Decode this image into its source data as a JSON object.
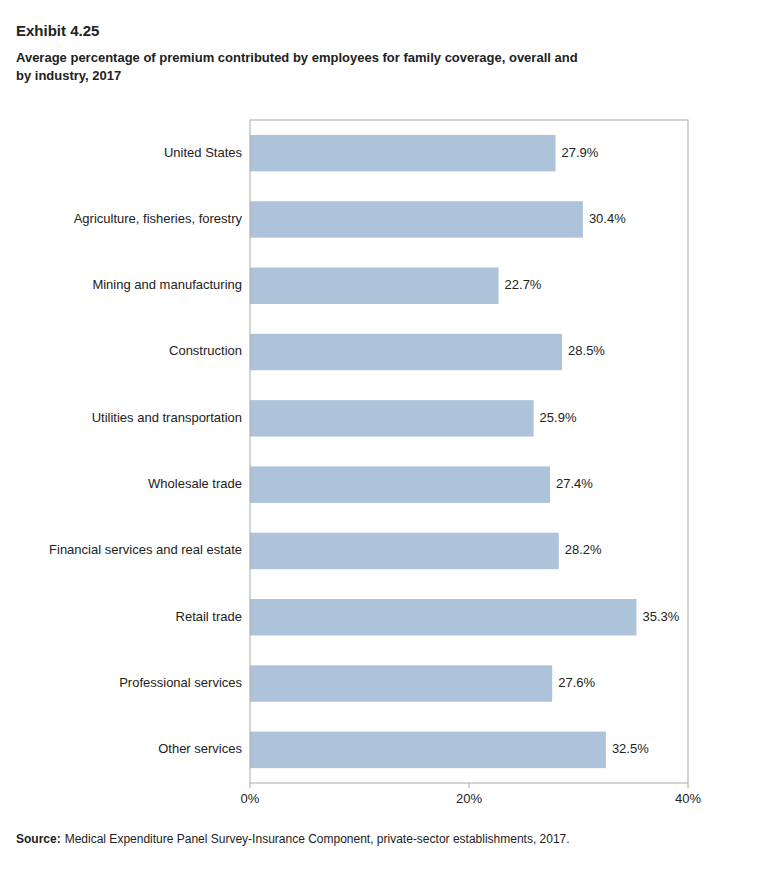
{
  "chart_data": {
    "type": "bar",
    "orientation": "horizontal",
    "title": "Exhibit 4.25",
    "subtitle": "Average percentage of premium contributed by employees for family coverage, overall and\nby industry, 2017",
    "annotations": [
      "Source:",
      "Medical Expenditure Panel Survey-Insurance Component, private-sector establishments, 2017."
    ],
    "categories": [
      "United States",
      "Agriculture, fisheries, forestry",
      "Mining and manufacturing",
      "Construction",
      "Utilities and transportation",
      "Wholesale trade",
      "Financial services and real estate",
      "Retail trade",
      "Professional services",
      "Other services"
    ],
    "values": [
      27.9,
      30.4,
      22.7,
      28.5,
      25.9,
      27.4,
      28.2,
      35.3,
      27.6,
      32.5
    ],
    "value_labels": [
      "27.9%",
      "30.4%",
      "22.7%",
      "28.5%",
      "25.9%",
      "27.4%",
      "28.2%",
      "35.3%",
      "27.6%",
      "32.5%"
    ],
    "data_labels": true,
    "color": "#adc3d9",
    "xlim": [
      0,
      40
    ],
    "xticks": [
      {
        "value": 0,
        "label": "0%"
      },
      {
        "value": 20,
        "label": "20%"
      },
      {
        "value": 40,
        "label": "40%"
      }
    ],
    "grid": false
  }
}
